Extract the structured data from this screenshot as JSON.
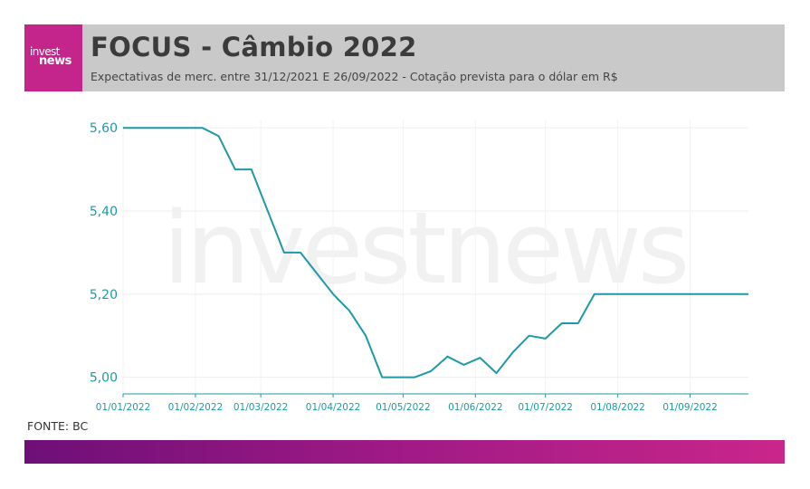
{
  "header": {
    "logo_line1": "invest",
    "logo_line2": "news",
    "title": "FOCUS - Câmbio 2022",
    "subtitle": "Expectativas de merc. entre 31/12/2021 E 26/09/2022 - Cotação prevista para o dólar em R$"
  },
  "watermark": "investnews",
  "source": "FONTE: BC",
  "colors": {
    "line": "#1e9aa6",
    "header_bg": "#c9c9c9",
    "logo_bg": "#c3258a",
    "footer_start": "#6e0f78",
    "footer_end": "#c9268a"
  },
  "chart_data": {
    "type": "line",
    "title": "",
    "xlabel": "",
    "ylabel": "",
    "ylim": [
      4.96,
      5.62
    ],
    "xlim": [
      "2022-01-01",
      "2022-09-26"
    ],
    "y_ticks": [
      {
        "value": 5.0,
        "label": "5,00"
      },
      {
        "value": 5.2,
        "label": "5,20"
      },
      {
        "value": 5.4,
        "label": "5,40"
      },
      {
        "value": 5.6,
        "label": "5,60"
      }
    ],
    "x_ticks": [
      {
        "date": "2022-01-01",
        "label": "01/01/2022"
      },
      {
        "date": "2022-02-01",
        "label": "01/02/2022"
      },
      {
        "date": "2022-03-01",
        "label": "01/03/2022"
      },
      {
        "date": "2022-04-01",
        "label": "01/04/2022"
      },
      {
        "date": "2022-05-01",
        "label": "01/05/2022"
      },
      {
        "date": "2022-06-01",
        "label": "01/06/2022"
      },
      {
        "date": "2022-07-01",
        "label": "01/07/2022"
      },
      {
        "date": "2022-08-01",
        "label": "01/08/2022"
      },
      {
        "date": "2022-09-01",
        "label": "01/09/2022"
      }
    ],
    "grid": true,
    "series": [
      {
        "points": [
          [
            "2022-01-01",
            5.6
          ],
          [
            "2022-02-04",
            5.6
          ],
          [
            "2022-02-11",
            5.58
          ],
          [
            "2022-02-18",
            5.5
          ],
          [
            "2022-02-25",
            5.5
          ],
          [
            "2022-03-11",
            5.3
          ],
          [
            "2022-03-18",
            5.3
          ],
          [
            "2022-04-01",
            5.2
          ],
          [
            "2022-04-08",
            5.16
          ],
          [
            "2022-04-15",
            5.1
          ],
          [
            "2022-04-22",
            5.0
          ],
          [
            "2022-05-06",
            5.0
          ],
          [
            "2022-05-13",
            5.015
          ],
          [
            "2022-05-20",
            5.05
          ],
          [
            "2022-05-27",
            5.03
          ],
          [
            "2022-06-03",
            5.047
          ],
          [
            "2022-06-10",
            5.01
          ],
          [
            "2022-06-17",
            5.06
          ],
          [
            "2022-06-24",
            5.1
          ],
          [
            "2022-07-01",
            5.093
          ],
          [
            "2022-07-08",
            5.13
          ],
          [
            "2022-07-15",
            5.13
          ],
          [
            "2022-07-22",
            5.2
          ],
          [
            "2022-09-26",
            5.2
          ]
        ]
      }
    ]
  }
}
